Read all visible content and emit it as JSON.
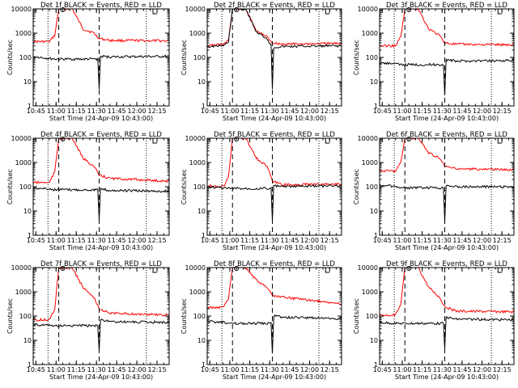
{
  "chart_data": [
    {
      "type": "line",
      "title": "Det 1f BLACK = Events, RED = LLD",
      "xlabel": "Start Time (24-Apr-09 10:43:00)",
      "ylabel": "Counts/sec",
      "ylim": [
        1,
        10000
      ],
      "yscale": "log",
      "xlim": [
        "10:43",
        "12:24"
      ],
      "x_ticks": [
        "10:45",
        "11:00",
        "11:15",
        "11:30",
        "11:45",
        "12:00",
        "12:15"
      ],
      "y_ticks": [
        "1",
        "10",
        "100",
        "1000",
        "10000"
      ],
      "vlines_dotted": [
        "10:54",
        "12:07"
      ],
      "vlines_dashed": [
        "11:02",
        "11:32"
      ],
      "series": [
        {
          "color": "#ff0000",
          "x": [
            "10:43",
            "10:55",
            "10:59",
            "11:02",
            "11:05",
            "11:12",
            "11:20",
            "11:28",
            "11:32",
            "11:40",
            "12:24"
          ],
          "y": [
            450,
            450,
            800,
            10000,
            10000,
            10000,
            1500,
            1000,
            600,
            500,
            480
          ]
        },
        {
          "color": "#000000",
          "x": [
            "10:43",
            "10:55",
            "11:00",
            "11:31",
            "11:32",
            "11:33",
            "11:40",
            "12:24"
          ],
          "y": [
            110,
            90,
            85,
            85,
            5,
            110,
            105,
            110
          ]
        }
      ]
    },
    {
      "type": "line",
      "title": "Det 2f BLACK = Events, RED = LLD",
      "xlabel": "Start Time (24-Apr-09 10:43:00)",
      "ylabel": "Counts/sec",
      "ylim": [
        1,
        10000
      ],
      "yscale": "log",
      "xlim": [
        "10:43",
        "12:24"
      ],
      "x_ticks": [
        "10:45",
        "11:00",
        "11:15",
        "11:30",
        "11:45",
        "12:00",
        "12:15"
      ],
      "y_ticks": [
        "1",
        "10",
        "100",
        "1000",
        "10000"
      ],
      "vlines_dotted": [
        "10:54",
        "12:07"
      ],
      "vlines_dashed": [
        "11:02",
        "11:32"
      ],
      "series": [
        {
          "color": "#ff0000",
          "x": [
            "10:43",
            "10:55",
            "10:59",
            "11:02",
            "11:05",
            "11:12",
            "11:20",
            "11:28",
            "11:32",
            "11:40",
            "12:24"
          ],
          "y": [
            300,
            350,
            500,
            10000,
            10000,
            10000,
            1200,
            700,
            400,
            350,
            380
          ]
        },
        {
          "color": "#000000",
          "x": [
            "10:43",
            "10:55",
            "10:59",
            "11:02",
            "11:05",
            "11:12",
            "11:20",
            "11:28",
            "11:31",
            "11:32",
            "11:33",
            "11:40",
            "12:24"
          ],
          "y": [
            280,
            300,
            450,
            10000,
            10000,
            10000,
            1100,
            600,
            320,
            5,
            260,
            280,
            300
          ]
        }
      ]
    },
    {
      "type": "line",
      "title": "Det 3f BLACK = Events, RED = LLD",
      "xlabel": "Start Time (24-Apr-09 10:43:00)",
      "ylabel": "Counts/sec",
      "ylim": [
        1,
        10000
      ],
      "yscale": "log",
      "xlim": [
        "10:43",
        "12:24"
      ],
      "x_ticks": [
        "10:45",
        "11:00",
        "11:15",
        "11:30",
        "11:45",
        "12:00",
        "12:15"
      ],
      "y_ticks": [
        "1",
        "10",
        "100",
        "1000",
        "10000"
      ],
      "vlines_dotted": [
        "10:54",
        "12:07"
      ],
      "vlines_dashed": [
        "11:02",
        "11:32"
      ],
      "series": [
        {
          "color": "#ff0000",
          "x": [
            "10:43",
            "10:55",
            "10:59",
            "11:02",
            "11:05",
            "11:12",
            "11:20",
            "11:28",
            "11:32",
            "11:40",
            "12:24"
          ],
          "y": [
            300,
            300,
            700,
            10000,
            10000,
            10000,
            1500,
            800,
            400,
            350,
            330
          ]
        },
        {
          "color": "#000000",
          "x": [
            "10:43",
            "10:55",
            "10:58",
            "11:31",
            "11:32",
            "11:33",
            "11:40",
            "12:24"
          ],
          "y": [
            60,
            55,
            50,
            50,
            3,
            80,
            70,
            75
          ]
        }
      ]
    },
    {
      "type": "line",
      "title": "Det 4f BLACK = Events, RED = LLD",
      "xlabel": "Start Time (24-Apr-09 10:43:00)",
      "ylabel": "Counts/sec",
      "ylim": [
        1,
        10000
      ],
      "yscale": "log",
      "xlim": [
        "10:43",
        "12:24"
      ],
      "x_ticks": [
        "10:45",
        "11:00",
        "11:15",
        "11:30",
        "11:45",
        "12:00",
        "12:15"
      ],
      "y_ticks": [
        "1",
        "10",
        "100",
        "1000",
        "10000"
      ],
      "vlines_dotted": [
        "10:54",
        "12:07"
      ],
      "vlines_dashed": [
        "11:02",
        "11:32"
      ],
      "series": [
        {
          "color": "#ff0000",
          "x": [
            "10:43",
            "10:55",
            "10:59",
            "11:02",
            "11:05",
            "11:12",
            "11:20",
            "11:28",
            "11:32",
            "11:40",
            "12:24"
          ],
          "y": [
            150,
            150,
            400,
            10000,
            10000,
            10000,
            1500,
            700,
            300,
            220,
            170
          ]
        },
        {
          "color": "#000000",
          "x": [
            "10:43",
            "10:55",
            "10:59",
            "11:31",
            "11:32",
            "11:33",
            "11:40",
            "12:24"
          ],
          "y": [
            90,
            80,
            75,
            75,
            4,
            80,
            70,
            65
          ]
        }
      ]
    },
    {
      "type": "line",
      "title": "Det 5f BLACK = Events, RED = LLD",
      "xlabel": "Start Time (24-Apr-09 10:43:00)",
      "ylabel": "Counts/sec",
      "ylim": [
        1,
        10000
      ],
      "yscale": "log",
      "xlim": [
        "10:43",
        "12:24"
      ],
      "x_ticks": [
        "10:45",
        "11:00",
        "11:15",
        "11:30",
        "11:45",
        "12:00",
        "12:15"
      ],
      "y_ticks": [
        "1",
        "10",
        "100",
        "1000",
        "10000"
      ],
      "vlines_dotted": [
        "10:54",
        "12:07"
      ],
      "vlines_dashed": [
        "11:02",
        "11:32"
      ],
      "series": [
        {
          "color": "#ff0000",
          "x": [
            "10:43",
            "10:55",
            "10:59",
            "11:02",
            "11:05",
            "11:12",
            "11:20",
            "11:28",
            "11:32",
            "11:40",
            "12:24"
          ],
          "y": [
            110,
            100,
            250,
            10000,
            10000,
            10000,
            1500,
            700,
            170,
            120,
            130
          ]
        },
        {
          "color": "#000000",
          "x": [
            "10:43",
            "10:55",
            "10:59",
            "11:31",
            "11:32",
            "11:33",
            "11:40",
            "12:24"
          ],
          "y": [
            100,
            90,
            85,
            85,
            4,
            110,
            100,
            110
          ]
        }
      ]
    },
    {
      "type": "line",
      "title": "Det 6f BLACK = Events, RED = LLD",
      "xlabel": "Start Time (24-Apr-09 10:43:00)",
      "ylabel": "Counts/sec",
      "ylim": [
        1,
        10000
      ],
      "yscale": "log",
      "xlim": [
        "10:43",
        "12:24"
      ],
      "x_ticks": [
        "10:45",
        "11:00",
        "11:15",
        "11:30",
        "11:45",
        "12:00",
        "12:15"
      ],
      "y_ticks": [
        "1",
        "10",
        "100",
        "1000",
        "10000"
      ],
      "vlines_dotted": [
        "10:54",
        "12:07"
      ],
      "vlines_dashed": [
        "11:02",
        "11:32"
      ],
      "series": [
        {
          "color": "#ff0000",
          "x": [
            "10:43",
            "10:55",
            "10:59",
            "11:02",
            "11:05",
            "11:12",
            "11:20",
            "11:28",
            "11:32",
            "11:40",
            "12:24"
          ],
          "y": [
            450,
            450,
            1000,
            10000,
            10000,
            10000,
            2500,
            1500,
            700,
            550,
            500
          ]
        },
        {
          "color": "#000000",
          "x": [
            "10:43",
            "10:55",
            "10:58",
            "11:31",
            "11:32",
            "11:33",
            "11:40",
            "12:24"
          ],
          "y": [
            120,
            100,
            90,
            90,
            4,
            120,
            100,
            100
          ]
        }
      ]
    },
    {
      "type": "line",
      "title": "Det 7f BLACK = Events, RED = LLD",
      "xlabel": "Start Time (24-Apr-09 10:43:00)",
      "ylabel": "Counts/sec",
      "ylim": [
        1,
        10000
      ],
      "yscale": "log",
      "xlim": [
        "10:43",
        "12:24"
      ],
      "x_ticks": [
        "10:45",
        "11:00",
        "11:15",
        "11:30",
        "11:45",
        "12:00",
        "12:15"
      ],
      "y_ticks": [
        "1",
        "10",
        "100",
        "1000",
        "10000"
      ],
      "vlines_dotted": [
        "10:54",
        "12:07"
      ],
      "vlines_dashed": [
        "11:02",
        "11:32"
      ],
      "series": [
        {
          "color": "#ff0000",
          "x": [
            "10:43",
            "10:55",
            "10:59",
            "11:02",
            "11:05",
            "11:12",
            "11:20",
            "11:28",
            "11:32",
            "11:40",
            "12:24"
          ],
          "y": [
            70,
            70,
            200,
            10000,
            10000,
            10000,
            1500,
            600,
            200,
            130,
            110
          ]
        },
        {
          "color": "#000000",
          "x": [
            "10:43",
            "10:55",
            "10:59",
            "11:31",
            "11:32",
            "11:33",
            "11:40",
            "12:24"
          ],
          "y": [
            45,
            40,
            40,
            40,
            4,
            70,
            60,
            55
          ]
        }
      ]
    },
    {
      "type": "line",
      "title": "Det 8f BLACK = Events, RED = LLD",
      "xlabel": "Start Time (24-Apr-09 10:43:00)",
      "ylabel": "Counts/sec",
      "ylim": [
        1,
        10000
      ],
      "yscale": "log",
      "xlim": [
        "10:43",
        "12:24"
      ],
      "x_ticks": [
        "10:45",
        "11:00",
        "11:15",
        "11:30",
        "11:45",
        "12:00",
        "12:15"
      ],
      "y_ticks": [
        "1",
        "10",
        "100",
        "1000",
        "10000"
      ],
      "vlines_dotted": [
        "10:54",
        "12:07"
      ],
      "vlines_dashed": [
        "11:02",
        "11:32"
      ],
      "series": [
        {
          "color": "#ff0000",
          "x": [
            "10:43",
            "10:55",
            "10:59",
            "11:02",
            "11:05",
            "11:12",
            "11:20",
            "11:28",
            "11:32",
            "11:40",
            "12:24"
          ],
          "y": [
            220,
            230,
            500,
            10000,
            10000,
            10000,
            3000,
            1500,
            700,
            600,
            320
          ]
        },
        {
          "color": "#000000",
          "x": [
            "10:43",
            "10:55",
            "10:59",
            "11:31",
            "11:32",
            "11:33",
            "11:40",
            "12:24"
          ],
          "y": [
            60,
            55,
            50,
            50,
            3,
            100,
            90,
            80
          ]
        }
      ]
    },
    {
      "type": "line",
      "title": "Det 9f BLACK = Events, RED = LLD",
      "xlabel": "Start Time (24-Apr-09 10:43:00)",
      "ylabel": "Counts/sec",
      "ylim": [
        1,
        10000
      ],
      "yscale": "log",
      "xlim": [
        "10:43",
        "12:24"
      ],
      "x_ticks": [
        "10:45",
        "11:00",
        "11:15",
        "11:30",
        "11:45",
        "12:00",
        "12:15"
      ],
      "y_ticks": [
        "1",
        "10",
        "100",
        "1000",
        "10000"
      ],
      "vlines_dotted": [
        "10:54",
        "12:07"
      ],
      "vlines_dashed": [
        "11:02",
        "11:32"
      ],
      "series": [
        {
          "color": "#ff0000",
          "x": [
            "10:43",
            "10:55",
            "10:59",
            "11:02",
            "11:05",
            "11:12",
            "11:20",
            "11:28",
            "11:32",
            "11:40",
            "12:24"
          ],
          "y": [
            110,
            110,
            300,
            10000,
            10000,
            10000,
            1500,
            600,
            250,
            160,
            150
          ]
        },
        {
          "color": "#000000",
          "x": [
            "10:43",
            "10:55",
            "10:59",
            "11:31",
            "11:32",
            "11:33",
            "11:40",
            "12:24"
          ],
          "y": [
            55,
            50,
            50,
            50,
            4,
            90,
            75,
            70
          ]
        }
      ]
    }
  ]
}
